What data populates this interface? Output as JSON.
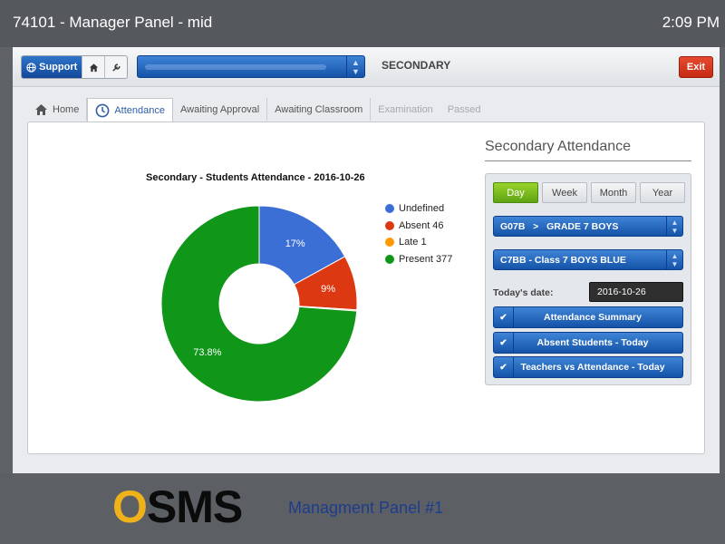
{
  "titlebar": {
    "title": "74101 - Manager Panel - mid",
    "clock": "2:09 PM"
  },
  "topbar": {
    "support_label": "Support",
    "home_icon": "home-icon",
    "tools_icon": "wrench-icon",
    "section_title": "SECONDARY",
    "exit_label": "Exit"
  },
  "tabs": [
    {
      "label": "Home",
      "icon": "home-icon",
      "state": "normal"
    },
    {
      "label": "Attendance",
      "icon": "clock-icon",
      "state": "active"
    },
    {
      "label": "Awaiting Approval",
      "state": "normal"
    },
    {
      "label": "Awaiting Classroom",
      "state": "normal"
    },
    {
      "label": "Examination",
      "state": "disabled"
    },
    {
      "label": "Passed",
      "state": "disabled"
    }
  ],
  "attendance": {
    "header": "Secondary Attendance",
    "periods": [
      "Day",
      "Week",
      "Month",
      "Year"
    ],
    "active_period": "Day",
    "grade_select": "G07B   >   GRADE 7 BOYS",
    "class_select": "C7BB - Class 7 BOYS BLUE",
    "date_label": "Today's date:",
    "date_value": "2016-10-26",
    "reports": [
      "Attendance Summary",
      "Absent Students - Today",
      "Teachers vs Attendance - Today"
    ]
  },
  "chart_data": {
    "type": "pie",
    "title": "Secondary - Students Attendance - 2016-10-26",
    "slices": [
      {
        "label": "Undefined",
        "percent": 17,
        "pct_label": "17%",
        "color": "#3b6fd6"
      },
      {
        "label": "Absent 46",
        "percent": 9,
        "pct_label": "9%",
        "color": "#dc3912"
      },
      {
        "label": "Late 1",
        "percent": 0.2,
        "pct_label": "",
        "color": "#ff9900"
      },
      {
        "label": "Present 377",
        "percent": 73.8,
        "pct_label": "73.8%",
        "color": "#109618"
      }
    ],
    "legend_position": "right"
  },
  "footer": {
    "logo_o": "O",
    "logo_rest": "SMS",
    "subtitle": "Managment Panel #1"
  }
}
